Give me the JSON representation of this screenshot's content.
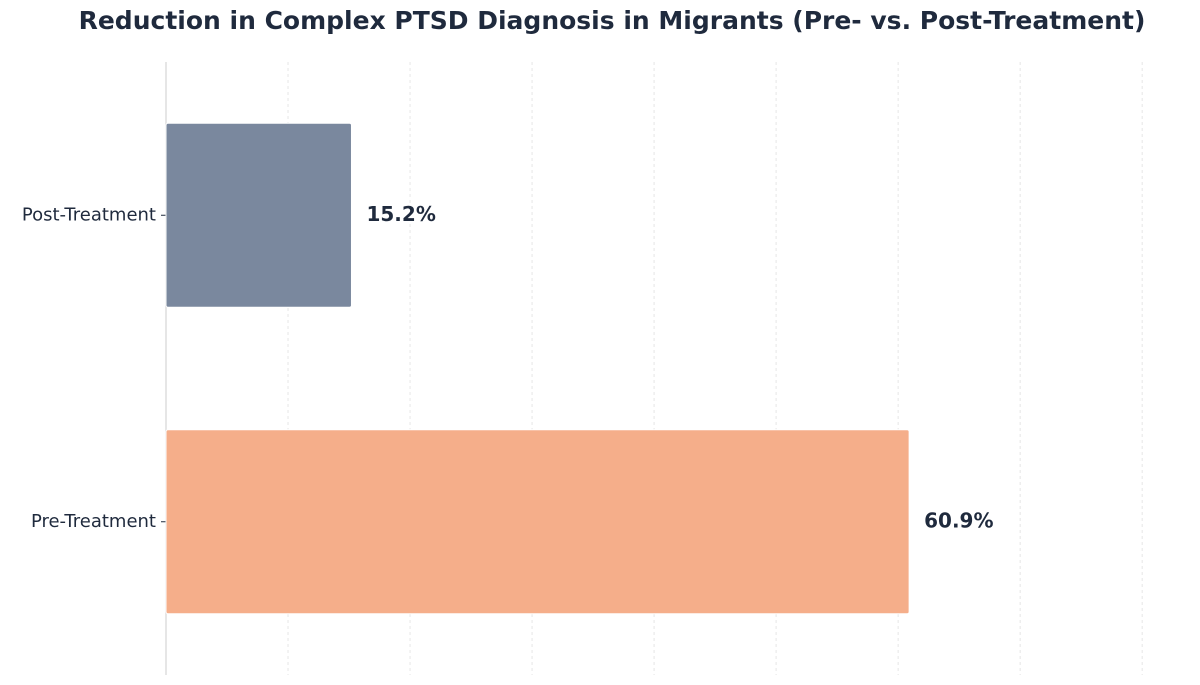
{
  "chart_data": {
    "type": "barh",
    "title": "Reduction in Complex PTSD Diagnosis in Migrants (Pre- vs. Post-Treatment)",
    "categories": [
      "Pre-Treatment",
      "Post-Treatment"
    ],
    "values": [
      60.9,
      15.2
    ],
    "value_labels": [
      "60.9%",
      "15.2%"
    ],
    "colors": [
      "#f5ae8a",
      "#7a889e"
    ],
    "xlim": [
      0,
      84
    ],
    "xticks": [
      0,
      10,
      20,
      30,
      40,
      50,
      60,
      70,
      80
    ],
    "grid": true
  }
}
